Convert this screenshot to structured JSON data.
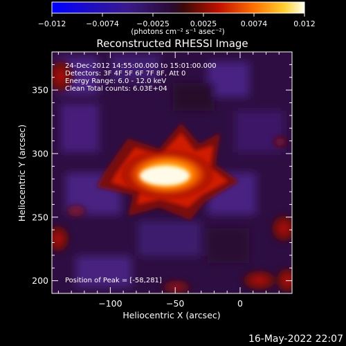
{
  "colorbar": {
    "ticks": [
      "-0.012",
      "-0.0074",
      "-0.0025",
      "0.0025",
      "0.0074",
      "0.012"
    ],
    "unit_label": "(photons cm⁻² s⁻¹ asec⁻²)",
    "range": [
      -0.012,
      0.012
    ]
  },
  "plot": {
    "title": "Reconstructed RHESSI Image",
    "xlabel": "Heliocentric X (arcsec)",
    "ylabel": "Heliocentric Y (arcsec)",
    "xlim": [
      -145,
      40
    ],
    "ylim": [
      190,
      380
    ],
    "x_ticks": [
      {
        "value": -100,
        "label": "−100"
      },
      {
        "value": -50,
        "label": "−50"
      },
      {
        "value": 0,
        "label": "0"
      }
    ],
    "y_ticks": [
      {
        "value": 200,
        "label": "200"
      },
      {
        "value": 250,
        "label": "250"
      },
      {
        "value": 300,
        "label": "300"
      },
      {
        "value": 350,
        "label": "350"
      }
    ],
    "annotations": [
      "24-Dec-2012 14:55:00.000 to 15:01:00.000",
      "Detectors: 3F 4F 5F 6F 7F 8F, Att 0",
      "Energy Range: 6.0 - 12.0 keV",
      "Clean     Total counts: 6.03E+04"
    ],
    "peak_label": "Position of Peak = [-58,281]",
    "peak": [
      -58,
      281
    ]
  },
  "footer": {
    "timestamp": "16-May-2022 22:07"
  }
}
